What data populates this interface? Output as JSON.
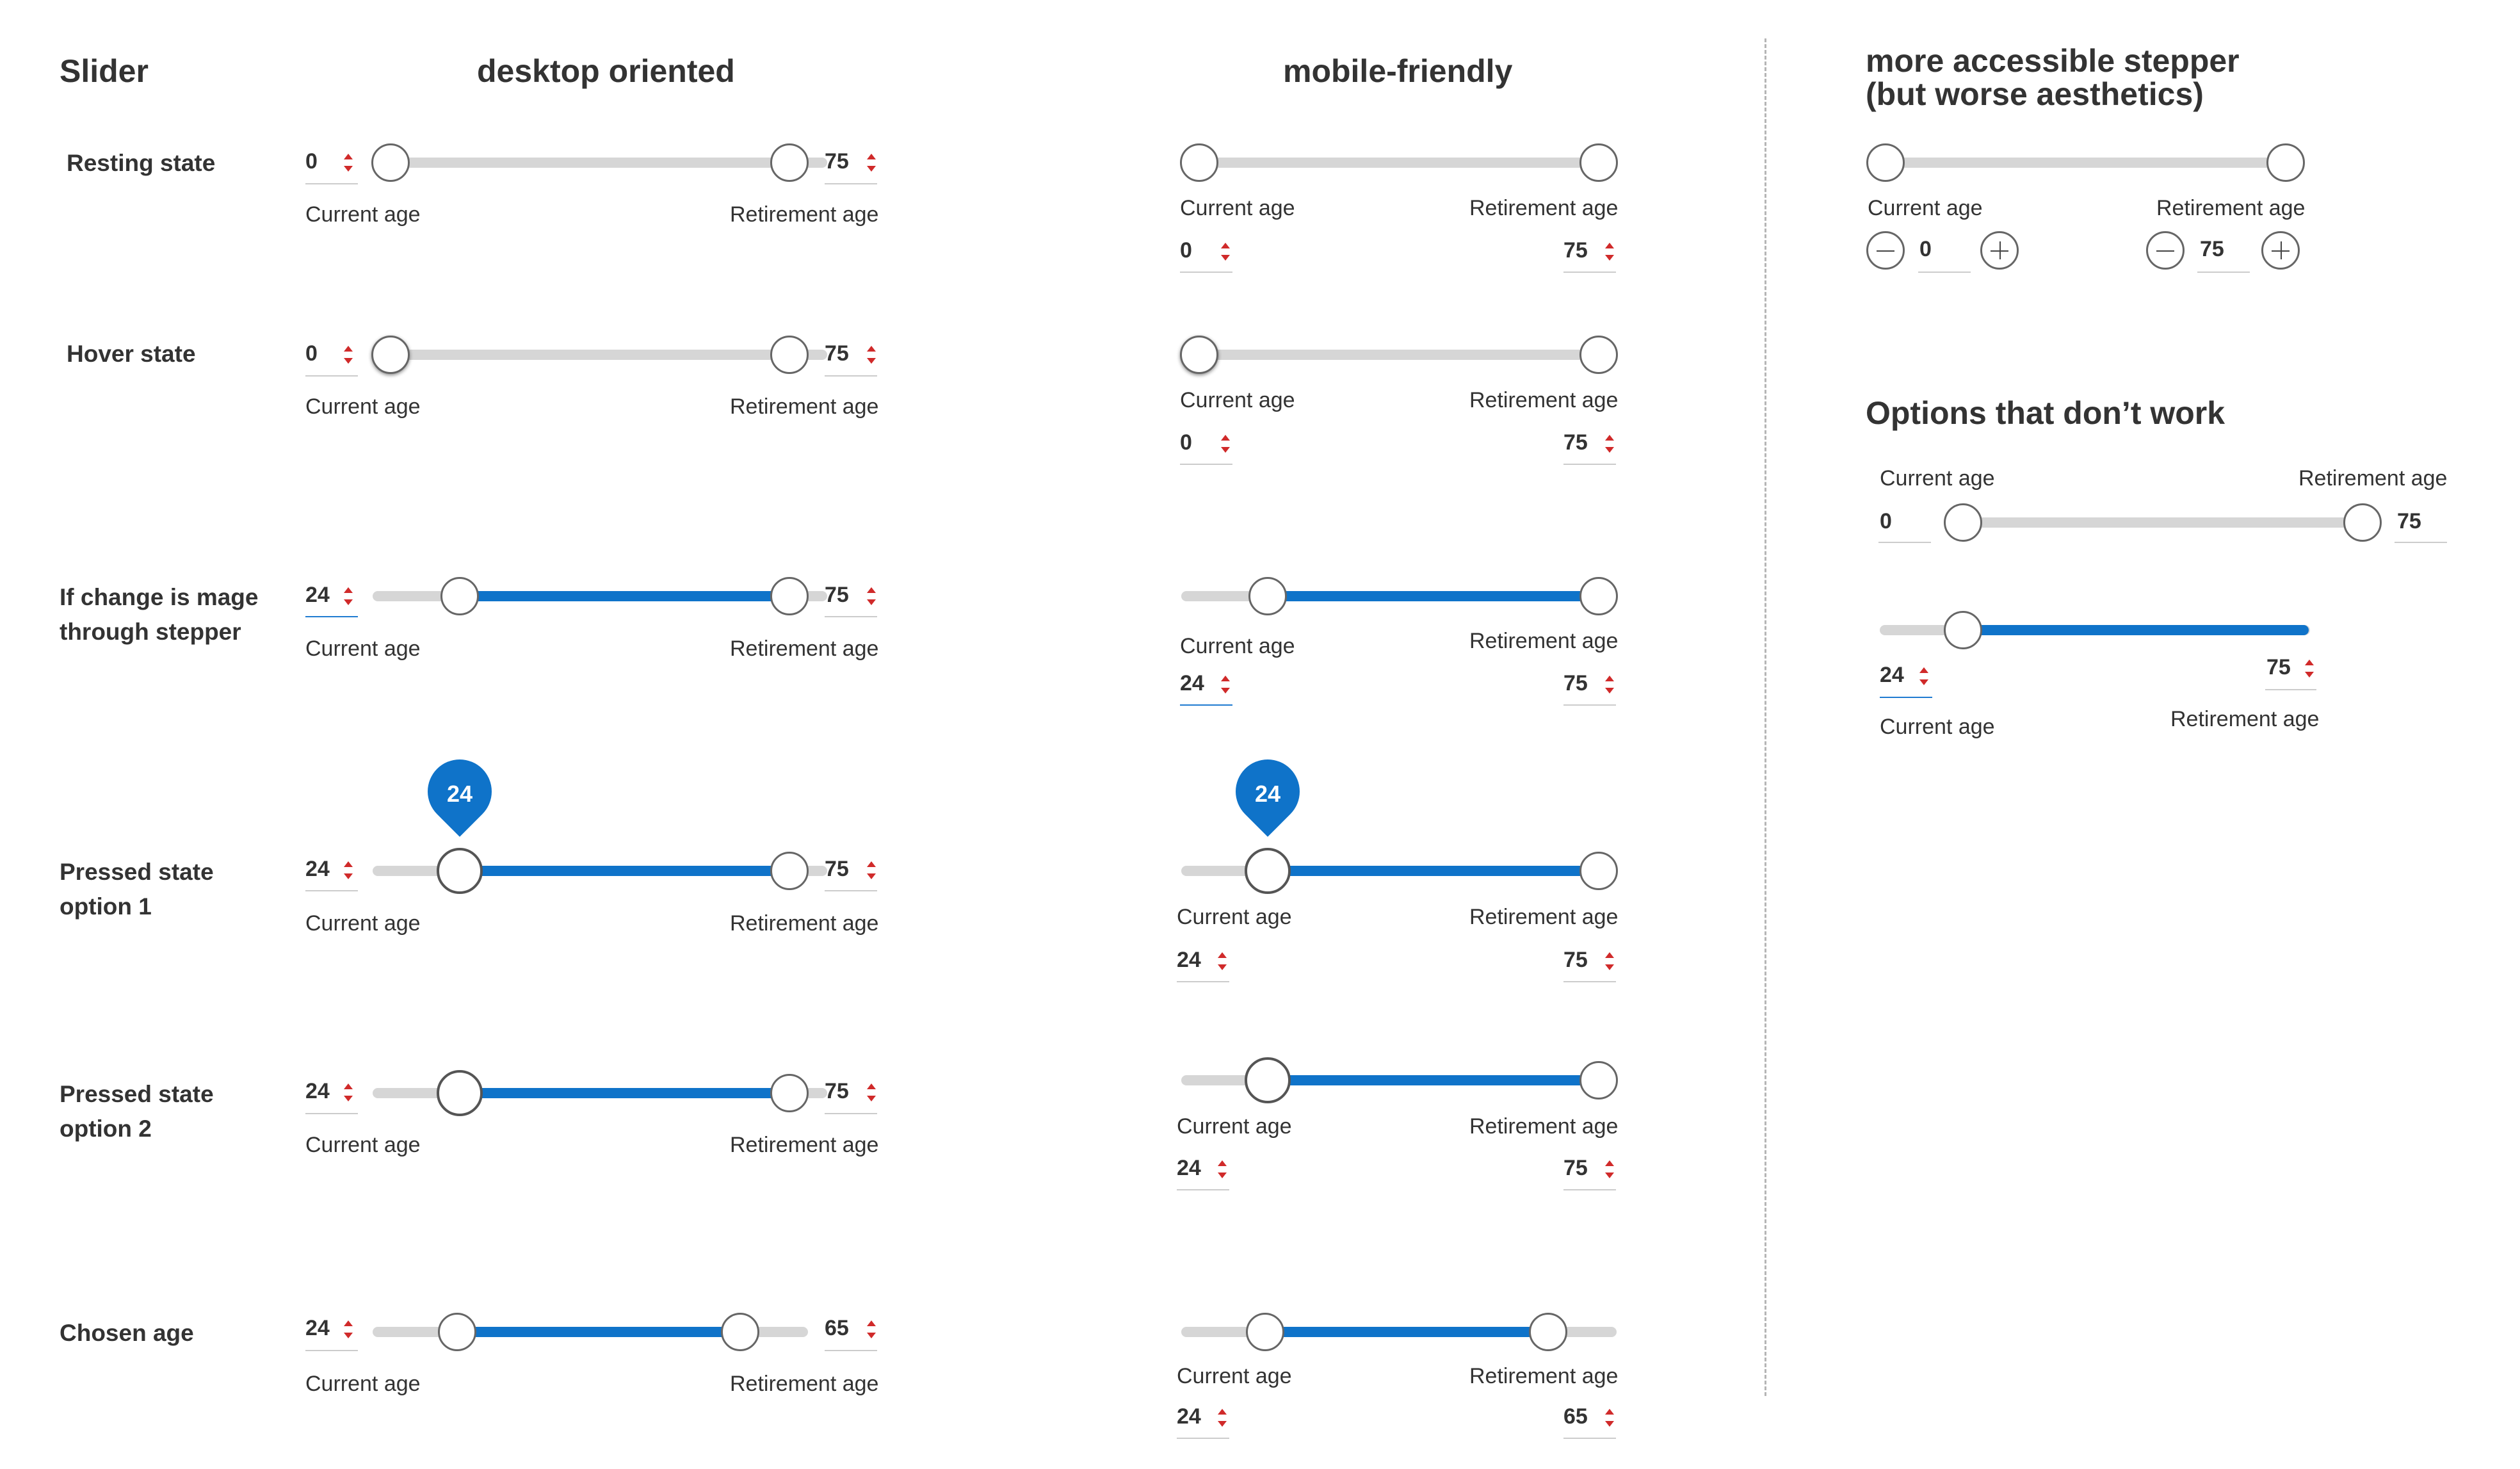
{
  "headings": {
    "slider": "Slider",
    "desktop": "desktop oriented",
    "mobile": "mobile-friendly",
    "stepper_line1": "more accessible stepper",
    "stepper_line2": "(but worse aesthetics)",
    "dont_work": "Options that don’t work"
  },
  "rows": [
    {
      "label_lines": [
        "Resting state"
      ],
      "cur": "0",
      "ret": "75"
    },
    {
      "label_lines": [
        "Hover state"
      ],
      "cur": "0",
      "ret": "75"
    },
    {
      "label_lines": [
        "If change is mage",
        "through stepper"
      ],
      "cur": "24",
      "ret": "75"
    },
    {
      "label_lines": [
        "Pressed state",
        "option 1"
      ],
      "cur": "24",
      "ret": "75"
    },
    {
      "label_lines": [
        "Pressed state",
        "option 2"
      ],
      "cur": "24",
      "ret": "75"
    },
    {
      "label_lines": [
        "Chosen age"
      ],
      "cur": "24",
      "ret": "65"
    }
  ],
  "labels": {
    "current_age": "Current age",
    "retirement_age": "Retirement age"
  },
  "tooltip_value": "24",
  "stepper": {
    "cur": "0",
    "ret": "75"
  },
  "dont_work": {
    "a_cur": "0",
    "a_ret": "75",
    "b_cur": "24",
    "b_ret": "75"
  },
  "colors": {
    "accent": "#0f73c9",
    "track": "#d6d6d6",
    "arrow": "#d02a2a"
  }
}
